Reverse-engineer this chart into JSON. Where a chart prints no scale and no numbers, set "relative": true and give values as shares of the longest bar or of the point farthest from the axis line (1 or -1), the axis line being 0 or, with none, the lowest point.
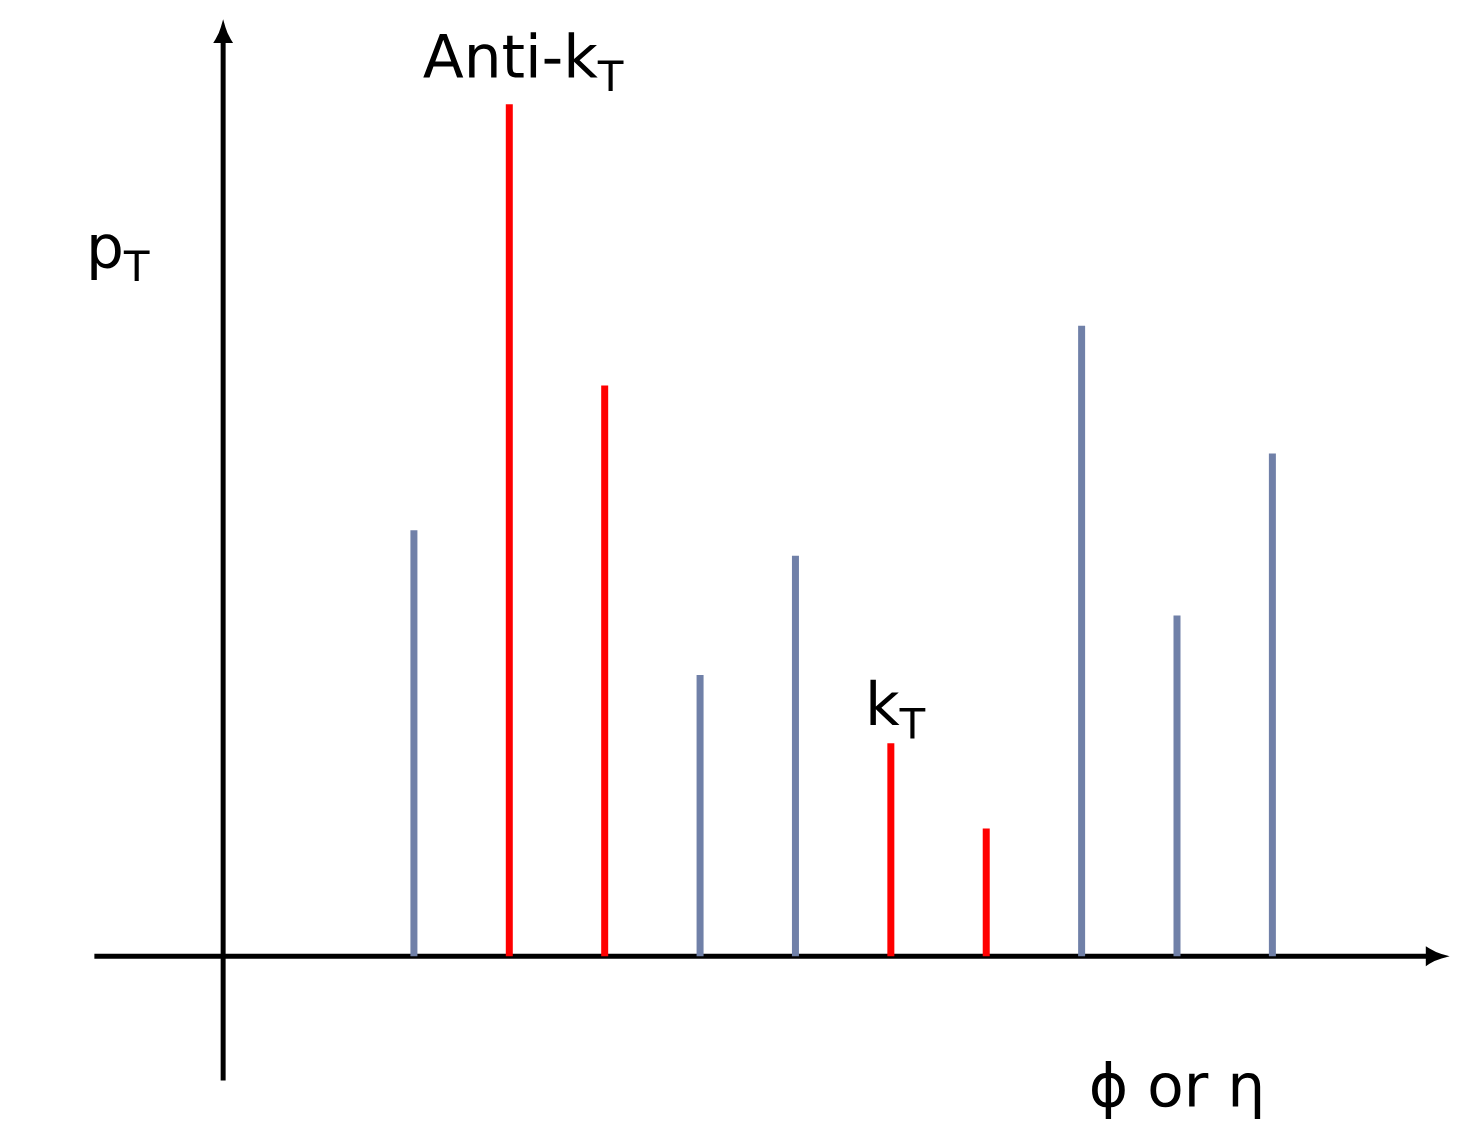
{
  "chart_data": {
    "type": "bar",
    "relative": true,
    "xlabel": "ϕ or η",
    "ylabel": "p$_{T}$",
    "categories": [
      null,
      null,
      null,
      null,
      null,
      null,
      null,
      null,
      null,
      null
    ],
    "values": [
      0.5,
      1.0,
      0.67,
      0.33,
      0.47,
      0.25,
      0.15,
      0.74,
      0.4,
      0.59
    ],
    "colors": [
      "#7080a8",
      "#ff0000",
      "#ff0000",
      "#7080a8",
      "#7080a8",
      "#ff0000",
      "#ff0000",
      "#7080a8",
      "#7080a8",
      "#7080a8"
    ],
    "annotations": [
      "Anti-k$_{T}$",
      "k$_{T}$"
    ]
  }
}
